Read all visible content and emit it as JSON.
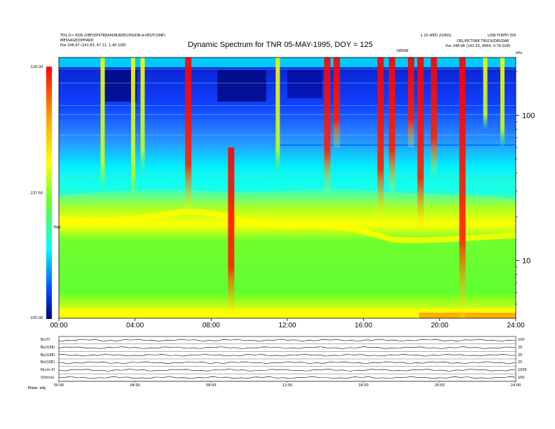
{
  "header": {
    "left_line1": "TDS.D> RDB (DBF/DPSTREAM/RDB/ED/HD/DB-A-VESTCOMP)",
    "left_line2": "MESSAGE/DPHARD",
    "left_pos": "Pos   248.47 (241.83, 47.11, 1.40 GSE)",
    "right_line1": "1.10 WED 20/ROL",
    "right_line2": "LOW FORTH DOI",
    "right_line3": "DEL/PICTURE TRUCK/DEUDAR",
    "right_pos": "Pos   248.96 (242.33, 4664, 0.79 GSE)",
    "mid_marker": "DENSE"
  },
  "chart_data": {
    "type": "heatmap",
    "title": "Dynamic Spectrum for TNR 05-MAY-1995, DOY = 125",
    "xlabel": "",
    "ylabel": "",
    "x_ticks": [
      "00:00",
      "04:00",
      "08:00",
      "12:00",
      "16:00",
      "20:00",
      "24:00"
    ],
    "x_range_hours": [
      0,
      24
    ],
    "y_scale": "log",
    "y_unit": "kHz",
    "y_ticks": [
      "100",
      "10"
    ],
    "y_range_khz": [
      4,
      250
    ],
    "colorbar": {
      "ticks": [
        "-120.00",
        "-137.50",
        "-155.00"
      ],
      "range_db": [
        -155,
        -120
      ],
      "label": "TNR"
    },
    "colors": {
      "low": "#00008b",
      "blue": "#0050ff",
      "cyan": "#00ffff",
      "green": "#60ff30",
      "yellow": "#ffff00",
      "red": "#ff0000"
    },
    "bursts": [
      {
        "t": 2.3,
        "khz_low": 30,
        "khz_high": 250,
        "level": "yellow"
      },
      {
        "t": 3.9,
        "khz_low": 25,
        "khz_high": 250,
        "level": "yellow"
      },
      {
        "t": 4.4,
        "khz_low": 40,
        "khz_high": 250,
        "level": "yellow"
      },
      {
        "t": 6.8,
        "khz_low": 22,
        "khz_high": 250,
        "level": "red"
      },
      {
        "t": 9.05,
        "khz_low": 4,
        "khz_high": 60,
        "level": "red"
      },
      {
        "t": 11.5,
        "khz_low": 40,
        "khz_high": 250,
        "level": "yellow"
      },
      {
        "t": 14.1,
        "khz_low": 30,
        "khz_high": 250,
        "level": "red"
      },
      {
        "t": 14.6,
        "khz_low": 60,
        "khz_high": 250,
        "level": "red"
      },
      {
        "t": 16.9,
        "khz_low": 20,
        "khz_high": 250,
        "level": "red"
      },
      {
        "t": 17.5,
        "khz_low": 30,
        "khz_high": 250,
        "level": "red"
      },
      {
        "t": 18.5,
        "khz_low": 60,
        "khz_high": 250,
        "level": "red"
      },
      {
        "t": 19.0,
        "khz_low": 16,
        "khz_high": 250,
        "level": "red"
      },
      {
        "t": 19.7,
        "khz_low": 40,
        "khz_high": 250,
        "level": "red"
      },
      {
        "t": 21.2,
        "khz_low": 4,
        "khz_high": 250,
        "level": "red"
      },
      {
        "t": 22.4,
        "khz_low": 80,
        "khz_high": 250,
        "level": "yellow"
      },
      {
        "t": 23.3,
        "khz_low": 60,
        "khz_high": 250,
        "level": "yellow"
      }
    ]
  },
  "lower_panel": {
    "rows": [
      {
        "label": "B(nT)",
        "right": "100"
      },
      {
        "label": "Bx(GSE)",
        "right": "25"
      },
      {
        "label": "By(GSE)",
        "right": "25"
      },
      {
        "label": "Bz(GSE)",
        "right": "25"
      },
      {
        "label": "N(cm-3)",
        "right": "1000"
      },
      {
        "label": "V(km/s)",
        "right": "100"
      }
    ],
    "x_ticks": [
      "00:00",
      "04:00",
      "08:00",
      "12:00",
      "16:00",
      "20:00",
      "24:00"
    ],
    "footer_label": "Make: wfp"
  }
}
